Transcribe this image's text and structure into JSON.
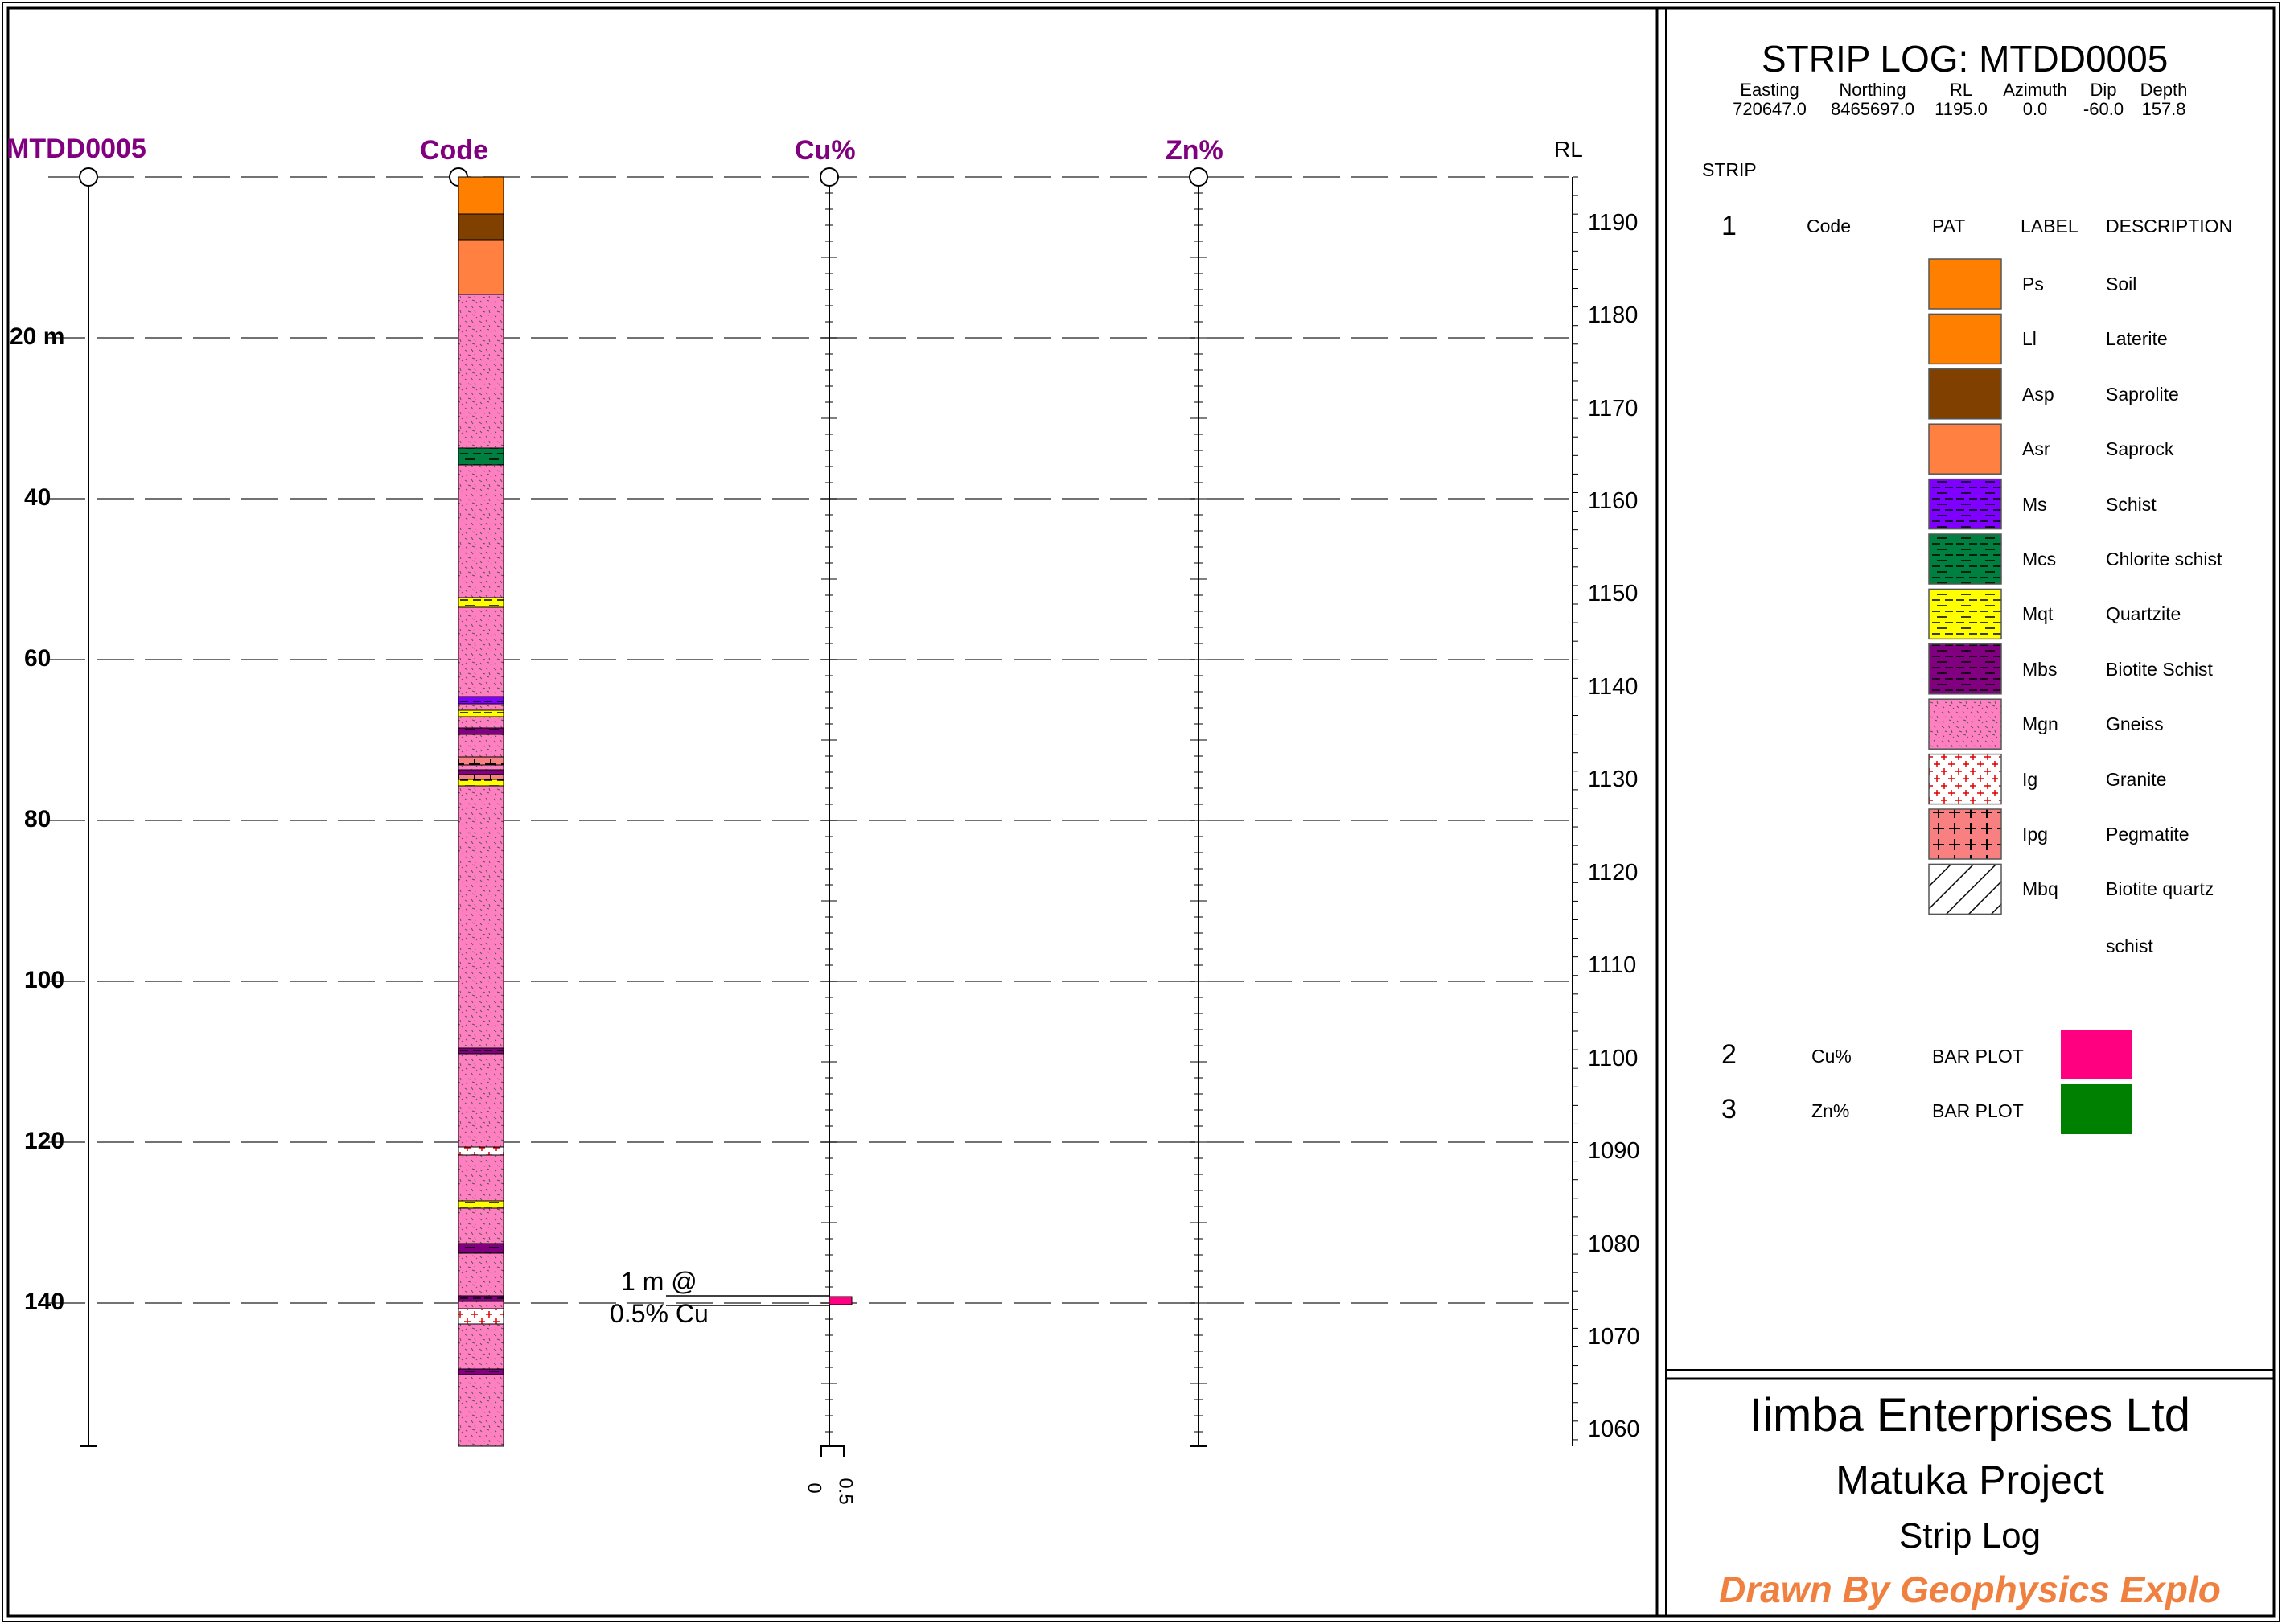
{
  "chart_data": {
    "type": "strip_log",
    "hole_id": "MTDD0005",
    "column_headers": {
      "depth": "MTDD0005",
      "code": "Code",
      "cu": "Cu%",
      "zn": "Zn%",
      "rl": "RL"
    },
    "depth_axis": {
      "range_m": [
        0,
        157.8
      ],
      "tick_labels": [
        "20 m",
        "40",
        "60",
        "80",
        "100",
        "120",
        "140"
      ],
      "ticks": [
        20,
        40,
        60,
        80,
        100,
        120,
        140
      ]
    },
    "rl_axis": {
      "range": [
        1195,
        1058.3
      ],
      "tick_values": [
        1190,
        1180,
        1170,
        1160,
        1150,
        1140,
        1130,
        1120,
        1110,
        1100,
        1090,
        1080,
        1070,
        1060
      ]
    },
    "cu_scale": {
      "min": 0,
      "max": 0.5,
      "tick_labels": [
        "0",
        "0.5"
      ]
    },
    "lithology_intervals": [
      {
        "from": 0.0,
        "to": 4.6,
        "code": "Ps"
      },
      {
        "from": 4.6,
        "to": 7.8,
        "code": "Asp"
      },
      {
        "from": 7.8,
        "to": 14.6,
        "code": "Asr"
      },
      {
        "from": 14.6,
        "to": 33.7,
        "code": "Mgn"
      },
      {
        "from": 33.7,
        "to": 35.8,
        "code": "Mcs"
      },
      {
        "from": 35.8,
        "to": 52.3,
        "code": "Mgn"
      },
      {
        "from": 52.3,
        "to": 53.5,
        "code": "Mqt"
      },
      {
        "from": 53.5,
        "to": 64.6,
        "code": "Mgn"
      },
      {
        "from": 64.6,
        "to": 65.5,
        "code": "Ms"
      },
      {
        "from": 65.5,
        "to": 66.3,
        "code": "Mgn"
      },
      {
        "from": 66.3,
        "to": 67.1,
        "code": "Mqt"
      },
      {
        "from": 67.1,
        "to": 68.5,
        "code": "Mgn"
      },
      {
        "from": 68.5,
        "to": 69.3,
        "code": "Mbs"
      },
      {
        "from": 69.3,
        "to": 72.1,
        "code": "Mgn"
      },
      {
        "from": 72.1,
        "to": 73.1,
        "code": "Ipg"
      },
      {
        "from": 73.1,
        "to": 73.7,
        "code": "Mgn"
      },
      {
        "from": 73.7,
        "to": 74.3,
        "code": "Mbs"
      },
      {
        "from": 74.3,
        "to": 74.9,
        "code": "Ipg"
      },
      {
        "from": 74.9,
        "to": 75.7,
        "code": "Mqt"
      },
      {
        "from": 75.7,
        "to": 108.3,
        "code": "Mgn"
      },
      {
        "from": 108.3,
        "to": 109.0,
        "code": "Mbs"
      },
      {
        "from": 109.0,
        "to": 120.6,
        "code": "Mgn"
      },
      {
        "from": 120.6,
        "to": 121.6,
        "code": "Ig"
      },
      {
        "from": 121.6,
        "to": 127.3,
        "code": "Mgn"
      },
      {
        "from": 127.3,
        "to": 128.2,
        "code": "Mqt"
      },
      {
        "from": 128.2,
        "to": 132.6,
        "code": "Mgn"
      },
      {
        "from": 132.6,
        "to": 133.8,
        "code": "Mbs"
      },
      {
        "from": 133.8,
        "to": 139.1,
        "code": "Mgn"
      },
      {
        "from": 139.1,
        "to": 139.8,
        "code": "Mbs"
      },
      {
        "from": 139.8,
        "to": 140.7,
        "code": "Mgn"
      },
      {
        "from": 140.7,
        "to": 142.6,
        "code": "Ig"
      },
      {
        "from": 142.6,
        "to": 148.2,
        "code": "Mgn"
      },
      {
        "from": 148.2,
        "to": 148.9,
        "code": "Mbs"
      },
      {
        "from": 148.9,
        "to": 157.8,
        "code": "Mgn"
      }
    ],
    "cu_assays": [
      {
        "from": 139.2,
        "to": 140.2,
        "value": 0.5
      }
    ],
    "zn_assays": [],
    "annotation": {
      "line1": "1 m @",
      "line2": "0.5% Cu",
      "depth": 139.7
    }
  },
  "header": {
    "title": "STRIP LOG: MTDD0005",
    "fields": [
      {
        "label": "Easting",
        "value": "720647.0"
      },
      {
        "label": "Northing",
        "value": "8465697.0"
      },
      {
        "label": "RL",
        "value": "1195.0"
      },
      {
        "label": "Azimuth",
        "value": "0.0"
      },
      {
        "label": "Dip",
        "value": "-60.0"
      },
      {
        "label": "Depth",
        "value": "157.8"
      }
    ]
  },
  "legend": {
    "strip_label": "STRIP",
    "strip1": {
      "num": "1",
      "name": "Code",
      "col_pat": "PAT",
      "col_label": "LABEL",
      "col_desc": "DESCRIPTION"
    },
    "items": [
      {
        "code": "Ps",
        "desc": "Soil",
        "color": "#ff8000",
        "pattern": "none"
      },
      {
        "code": "Ll",
        "desc": "Laterite",
        "color": "#ff8000",
        "pattern": "none"
      },
      {
        "code": "Asp",
        "desc": "Saprolite",
        "color": "#804000",
        "pattern": "none"
      },
      {
        "code": "Asr",
        "desc": "Saprock",
        "color": "#ff8040",
        "pattern": "none"
      },
      {
        "code": "Ms",
        "desc": "Schist",
        "color": "#8000ff",
        "pattern": "dash"
      },
      {
        "code": "Mcs",
        "desc": "Chlorite schist",
        "color": "#008040",
        "pattern": "dash"
      },
      {
        "code": "Mqt",
        "desc": "Quartzite",
        "color": "#ffff00",
        "pattern": "dash"
      },
      {
        "code": "Mbs",
        "desc": "Biotite Schist",
        "color": "#800080",
        "pattern": "dash"
      },
      {
        "code": "Mgn",
        "desc": "Gneiss",
        "color": "#ff80c0",
        "pattern": "speckle"
      },
      {
        "code": "Ig",
        "desc": "Granite",
        "color": "#ffffff",
        "pattern": "redplus"
      },
      {
        "code": "Ipg",
        "desc": "Pegmatite",
        "color": "#f88080",
        "pattern": "blackplus"
      },
      {
        "code": "Mbq",
        "desc": "Biotite quartz",
        "desc2": "schist",
        "color": "#ffffff",
        "pattern": "hatch"
      }
    ],
    "strip2": {
      "num": "2",
      "name": "Cu%",
      "type": "BAR PLOT",
      "color": "#ff0080"
    },
    "strip3": {
      "num": "3",
      "name": "Zn%",
      "type": "BAR PLOT",
      "color": "#008000"
    }
  },
  "titleblock": {
    "company": "Iimba Enterprises Ltd",
    "project": "Matuka Project",
    "doc": "Strip Log",
    "drawn": "Drawn By Geophysics Explo"
  }
}
